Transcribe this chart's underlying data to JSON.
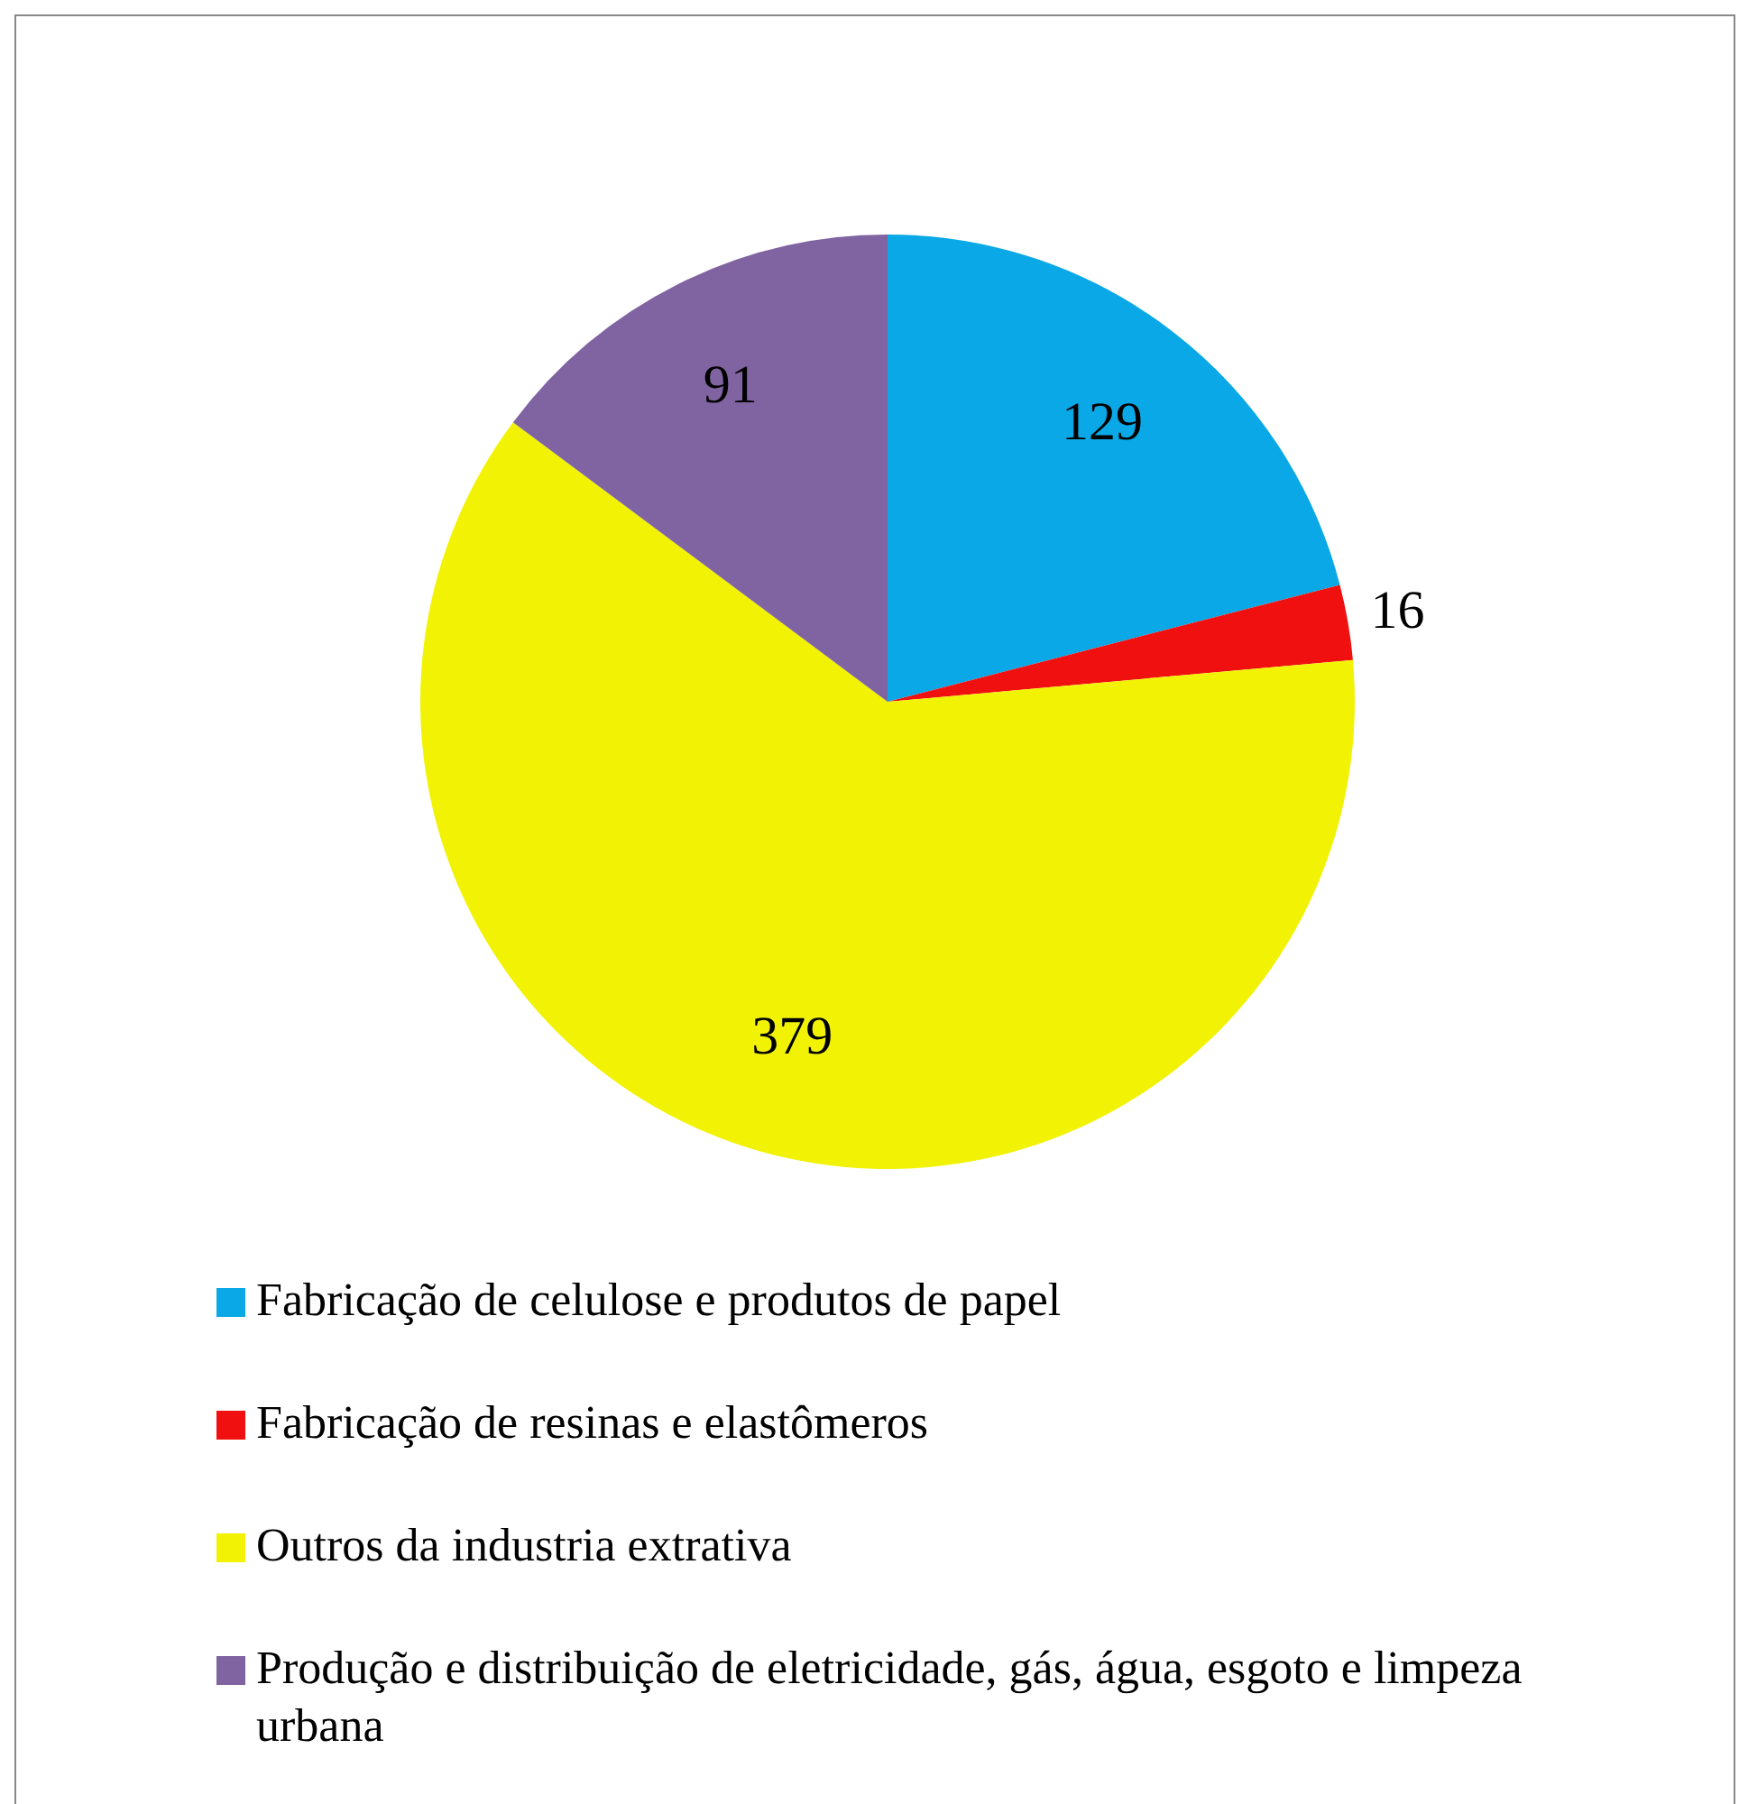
{
  "chart_data": {
    "type": "pie",
    "categories": [
      "Fabricação de celulose e produtos de papel",
      "Fabricação de resinas e elastômeros",
      "Outros da industria extrativa",
      "Produção e distribuição de eletricidade, gás, água, esgoto e limpeza urbana"
    ],
    "values": [
      129,
      16,
      379,
      91
    ],
    "colors": [
      "#0aa8e6",
      "#f01010",
      "#f2f205",
      "#8064a2"
    ],
    "data_labels": true,
    "legend": "bottom"
  }
}
